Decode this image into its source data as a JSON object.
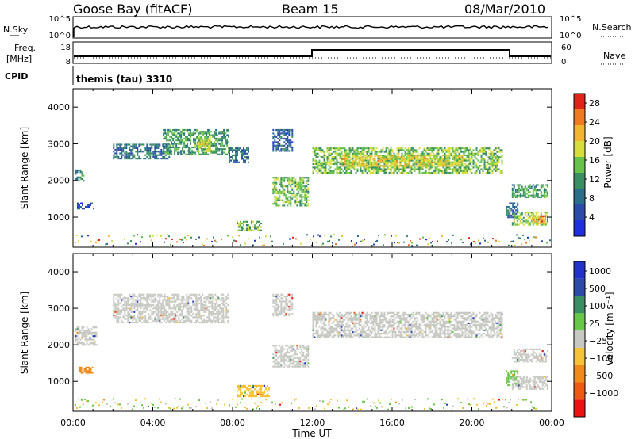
{
  "header": {
    "station": "Goose Bay (fitACF)",
    "beam": "Beam 15",
    "date": "08/Mar/2010"
  },
  "noise_panel": {
    "left_label": "N.Sky",
    "right_label": "N.Search",
    "ticks_left": [
      "10^5",
      "10^0"
    ],
    "ticks_right": [
      "10^5",
      "10^0"
    ]
  },
  "freq_panel": {
    "left_label_1": "Freq.",
    "left_label_2": "[MHz]",
    "right_label": "Nave",
    "ticks_left": [
      "18",
      "8"
    ],
    "ticks_right": [
      "60",
      "0"
    ]
  },
  "cpid": {
    "label": "CPID",
    "text": "themis (tau) 3310"
  },
  "colors": {
    "power_scale": [
      "#1f2fe0",
      "#2c4aa8",
      "#2a6e8c",
      "#3a8f62",
      "#66c24a",
      "#d7de3b",
      "#f2b52f",
      "#f07a22",
      "#e02418"
    ],
    "velocity_scale": [
      "#ee1111",
      "#ef5a12",
      "#f08a1a",
      "#f6c238",
      "#c8c8c3",
      "#66c846",
      "#3a8f62",
      "#2c4aa8",
      "#2233cc"
    ],
    "ground_scatter": "#c8c8c3"
  },
  "power_colorbar": {
    "label": "Power [dB]",
    "ticks": [
      "4",
      "8",
      "12",
      "16",
      "20",
      "24",
      "28"
    ]
  },
  "velocity_colorbar": {
    "label": "Velocity [m s⁻¹]",
    "ticks": [
      "1000",
      "500",
      "100",
      "25",
      "−25",
      "−100",
      "−500",
      "−1000"
    ]
  },
  "chart_data": [
    {
      "type": "heatmap",
      "panel": "power",
      "xlabel": "",
      "ylabel": "Slant Range [km]",
      "xlim": [
        0,
        24
      ],
      "ylim": [
        180,
        4500
      ],
      "yticks": [
        "1000",
        "2000",
        "3000",
        "4000"
      ],
      "colorbar_range": [
        0,
        30
      ],
      "regions": [
        {
          "t0": 0.1,
          "t1": 0.5,
          "r0": 2000,
          "r1": 2300,
          "level": 10
        },
        {
          "t0": 0.2,
          "t1": 1.0,
          "r0": 1220,
          "r1": 1400,
          "level": 5
        },
        {
          "t0": 2.0,
          "t1": 4.8,
          "r0": 2600,
          "r1": 3000,
          "level": 8
        },
        {
          "t0": 4.5,
          "t1": 7.8,
          "r0": 2700,
          "r1": 3400,
          "level": 12
        },
        {
          "t0": 6.2,
          "t1": 6.9,
          "r0": 2800,
          "r1": 3200,
          "level": 17
        },
        {
          "t0": 7.8,
          "t1": 8.8,
          "r0": 2500,
          "r1": 2900,
          "level": 7
        },
        {
          "t0": 8.2,
          "t1": 9.4,
          "r0": 620,
          "r1": 900,
          "level": 14
        },
        {
          "t0": 10.0,
          "t1": 11.8,
          "r0": 1300,
          "r1": 2100,
          "level": 14
        },
        {
          "t0": 10.0,
          "t1": 11.0,
          "r0": 2800,
          "r1": 3400,
          "level": 6
        },
        {
          "t0": 12.0,
          "t1": 21.5,
          "r0": 2200,
          "r1": 2900,
          "level": 15
        },
        {
          "t0": 13.5,
          "t1": 19.5,
          "r0": 2400,
          "r1": 2700,
          "level": 20
        },
        {
          "t0": 21.7,
          "t1": 22.3,
          "r0": 1000,
          "r1": 1400,
          "level": 8
        },
        {
          "t0": 22.0,
          "t1": 23.8,
          "r0": 1550,
          "r1": 1900,
          "level": 12
        },
        {
          "t0": 22.0,
          "t1": 23.8,
          "r0": 800,
          "r1": 1150,
          "level": 16
        },
        {
          "t0": 23.0,
          "t1": 23.7,
          "r0": 850,
          "r1": 1050,
          "level": 24
        }
      ]
    },
    {
      "type": "heatmap",
      "panel": "velocity",
      "xlabel": "Time UT",
      "ylabel": "Slant Range [km]",
      "xlim": [
        0,
        24
      ],
      "ylim": [
        180,
        4500
      ],
      "xticks": [
        "00:00",
        "04:00",
        "08:00",
        "12:00",
        "16:00",
        "20:00",
        "00:00"
      ],
      "yticks": [
        "1000",
        "2000",
        "3000",
        "4000"
      ],
      "regions": [
        {
          "t0": 0.1,
          "t1": 1.2,
          "r0": 2000,
          "r1": 2500,
          "velocity": 0
        },
        {
          "t0": 0.3,
          "t1": 1.0,
          "r0": 1220,
          "r1": 1400,
          "velocity": -150
        },
        {
          "t0": 2.0,
          "t1": 7.8,
          "r0": 2600,
          "r1": 3400,
          "velocity": 0
        },
        {
          "t0": 8.2,
          "t1": 9.8,
          "r0": 600,
          "r1": 900,
          "velocity": -60
        },
        {
          "t0": 10.0,
          "t1": 11.8,
          "r0": 1400,
          "r1": 2000,
          "velocity": 0
        },
        {
          "t0": 10.0,
          "t1": 11.0,
          "r0": 2800,
          "r1": 3400,
          "velocity": 0
        },
        {
          "t0": 12.0,
          "t1": 21.5,
          "r0": 2200,
          "r1": 2900,
          "velocity": 0
        },
        {
          "t0": 21.7,
          "t1": 22.3,
          "r0": 900,
          "r1": 1300,
          "velocity": 60
        },
        {
          "t0": 22.0,
          "t1": 23.8,
          "r0": 1550,
          "r1": 1900,
          "velocity": 0
        },
        {
          "t0": 22.0,
          "t1": 23.8,
          "r0": 800,
          "r1": 1150,
          "velocity": 0
        }
      ]
    }
  ]
}
